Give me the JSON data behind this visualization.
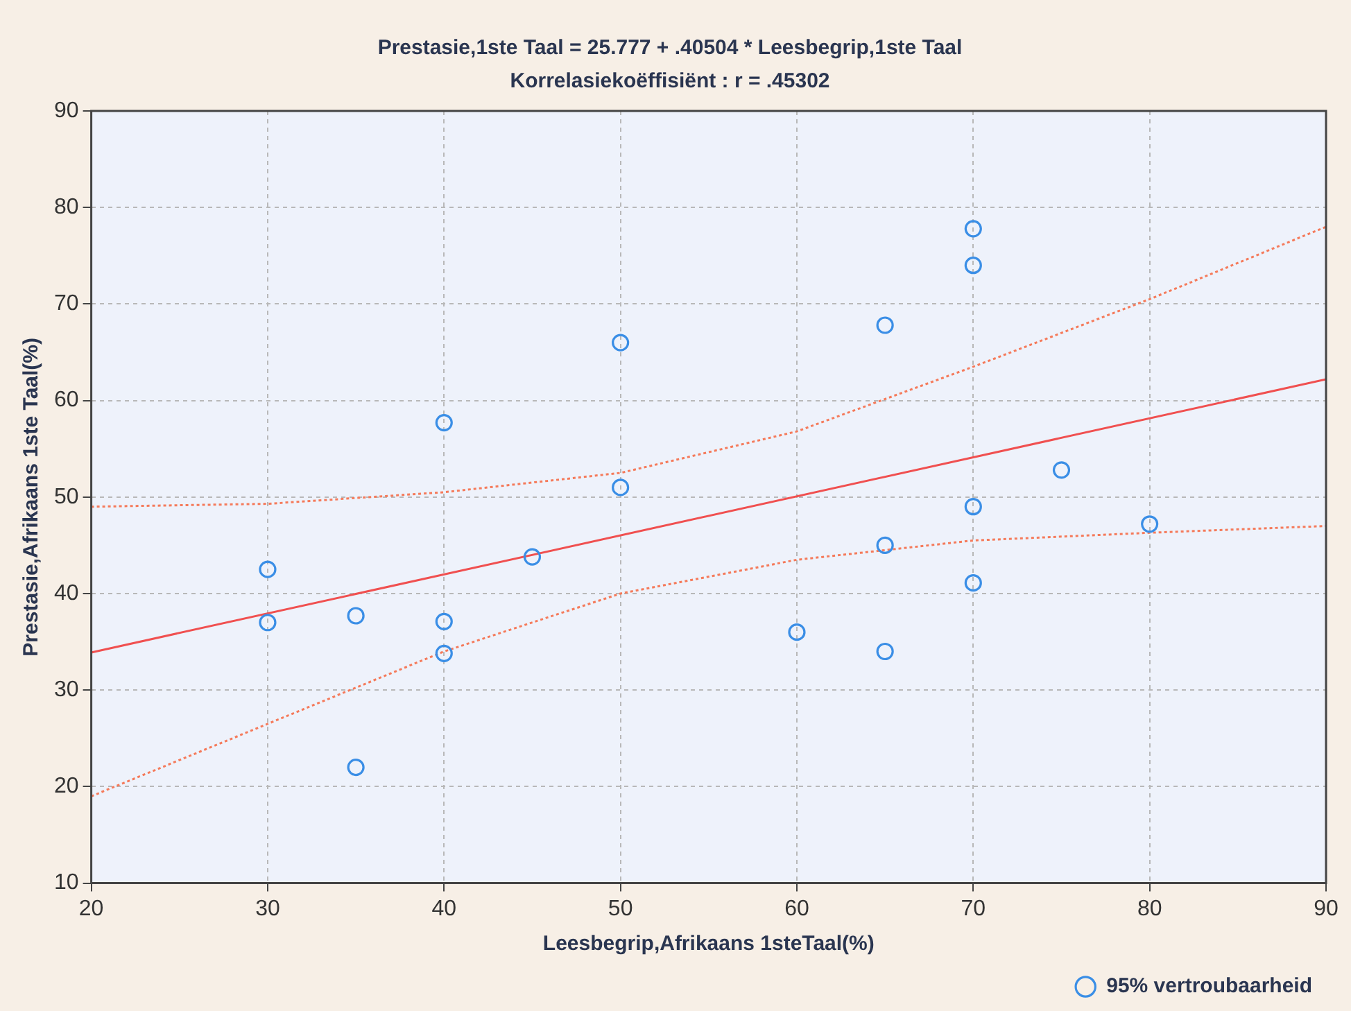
{
  "chart_data": {
    "type": "scatter",
    "title": "Prestasie,1ste Taal = 25.777 + .40504 * Leesbegrip,1ste Taal",
    "subtitle": "Korrelasiekoëffisiënt : r = .45302",
    "xlabel": "Leesbegrip,Afrikaans 1steTaal(%)",
    "ylabel": "Prestasie,Afrikaans 1ste Taal(%)",
    "xlim": [
      20,
      90
    ],
    "xticks": [
      20,
      30,
      40,
      50,
      60,
      70,
      80,
      90
    ],
    "ylim": [
      10,
      90
    ],
    "yticks": [
      10,
      20,
      30,
      40,
      50,
      60,
      70,
      80,
      90
    ],
    "grid": true,
    "legend": "bottom right",
    "marker": "circle",
    "series": [
      {
        "name": "95% vertroubaarheid",
        "color": "#3a8ee6",
        "x": [
          30,
          30,
          35,
          35,
          40,
          40,
          40,
          45,
          50,
          50,
          60,
          65,
          65,
          65,
          70,
          70,
          70,
          70,
          75,
          80
        ],
        "values": [
          42.5,
          37,
          37.7,
          22,
          57.7,
          37.1,
          33.8,
          43.8,
          66,
          51,
          36,
          67.8,
          45,
          34,
          77.8,
          74,
          49,
          41.1,
          52.8,
          47.2
        ]
      },
      {
        "type": "line",
        "color": "#f05050",
        "line_style": "solid",
        "marker": "none",
        "x": [
          20,
          90
        ],
        "values": [
          33.9,
          62.2
        ]
      },
      {
        "type": "line",
        "color": "#f57a5a",
        "line_style": "dotted",
        "marker": "none",
        "x": [
          20,
          30,
          40,
          50,
          60,
          70,
          80,
          90
        ],
        "values": [
          49,
          49.3,
          50.5,
          52.5,
          56.8,
          63.5,
          70.5,
          78
        ]
      },
      {
        "type": "line",
        "color": "#f57a5a",
        "line_style": "dotted",
        "marker": "none",
        "x": [
          20,
          30,
          40,
          50,
          60,
          70,
          80,
          90
        ],
        "values": [
          19,
          26.5,
          34,
          40,
          43.5,
          45.5,
          46.3,
          47
        ]
      }
    ]
  }
}
